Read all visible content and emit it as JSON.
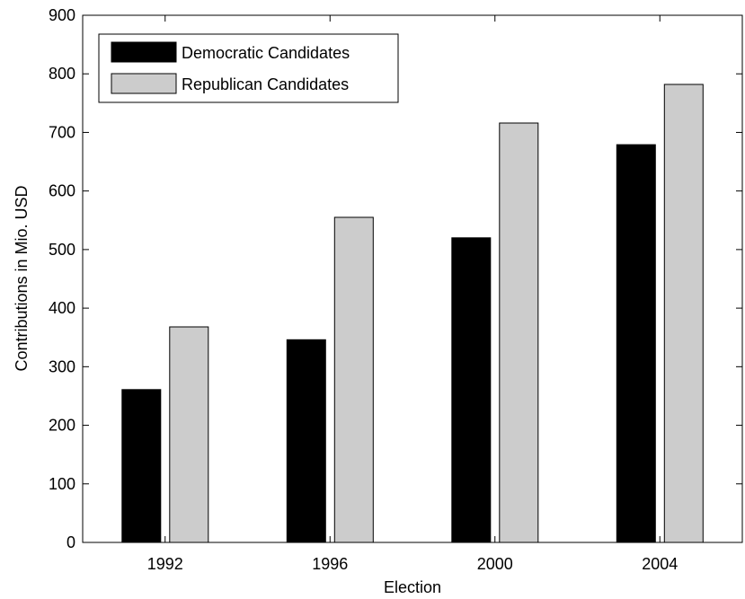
{
  "chart_data": {
    "type": "bar",
    "categories": [
      "1992",
      "1996",
      "2000",
      "2004"
    ],
    "series": [
      {
        "name": "Democratic Candidates",
        "values": [
          261,
          346,
          520,
          679
        ],
        "color": "#000000"
      },
      {
        "name": "Republican Candidates",
        "values": [
          368,
          555,
          716,
          782
        ],
        "color": "#cccccc"
      }
    ],
    "title": "",
    "xlabel": "Election",
    "ylabel": "Contributions in Mio. USD",
    "ylim": [
      0,
      900
    ],
    "yticks": [
      0,
      100,
      200,
      300,
      400,
      500,
      600,
      700,
      800,
      900
    ],
    "grid": false,
    "legend_position": "top-left"
  }
}
